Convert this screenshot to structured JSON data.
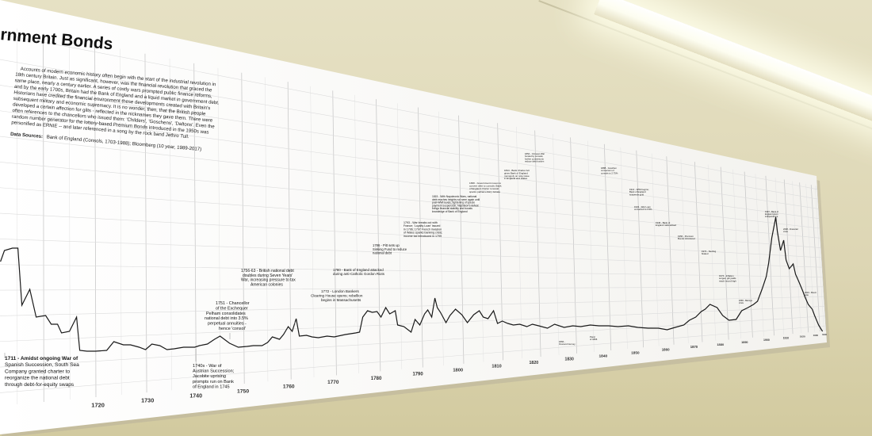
{
  "poster": {
    "title": "rnment Bonds",
    "intro_paragraph": [
      "Accounts of modern economic history often begin with the start of the industrial revolution in",
      "18th century Britain. Just as significant, however, was the financial revolution that graced the",
      "same place, nearly a century earlier. A series of costly wars prompted public finance reforms,",
      "and by the early 1700s, Britain had the Bank of England and a liquid market in government debt.",
      "Historians have credited the financial environment these developments created with Britain's",
      "subsequent military and economic supremacy. It is no wonder, then, that the British people",
      "developed a certain affection for gilts - reflected in the nicknames they gave them. There were",
      "often references to the chancellors who issued them: 'Childers', 'Goschens', 'Daltons'. Even the",
      "random number generator for the lottery-based Premium Bonds introduced in the 1950s was",
      "personified as ERNIE -- and later referenced in a song by the rock band Jethro Tull."
    ],
    "data_sources_label": "Data Sources:",
    "data_sources_text": "Bank of England (Consols, 1703-1988); Bloomberg (10 year, 1989-2017)",
    "annotations": {
      "a1711": [
        "1711 - Amidst ongoing War of",
        "Spanish Succession, South Sea",
        "Company granted charter to",
        "reorganize the national debt",
        "through debt-for-equity swaps"
      ],
      "a1740": [
        "1740s - War of",
        "Austrian Succession;",
        "Jacobite uprising",
        "prompts run on Bank",
        "of England in 1745"
      ],
      "a1751": [
        "1751 - Chancellor",
        "of the Exchequer",
        "Pelham consolidates",
        "national debt into 3.5%",
        "perpetual annuities -",
        "hence 'consol'"
      ],
      "a1756": [
        "1756-63 - British national debt",
        "doubles during Seven Years'",
        "War, increasing pressure to tax",
        "American colonies"
      ],
      "a1772": [
        "1772 - London Bankers",
        "Clearing House opens; rebellion",
        "begins in Massachusetts"
      ],
      "a1780": [
        "1780 - Bank of England attacked",
        "during anti-Catholic Gordon Riots"
      ],
      "a1786": [
        "1786 - Pitt sets up",
        "Sinking Fund to reduce",
        "national debt"
      ],
      "a1793": [
        "1793 - War breaks out with",
        "France; 'Loyalty Loan' issued",
        "in 1796; 1797 French invasion",
        "of Wales sparks banking crisis;",
        "income tax introduced in 1799"
      ],
      "a1815": [
        "1815 - With Napoleonic Wars, national",
        "debt reaches heights not seen again until",
        "post-WWI levels; tightening of specie",
        "payment suspension; Napoleon's defeat",
        "brings financial stability and boosts",
        "knowledge of Bank of England"
      ],
      "a1830": [
        "1830 - Government moves to",
        "convert debt to consols; Bank",
        "of England charter renewal",
        "sparks parliamentary debate"
      ],
      "a1844": [
        "1844 - Bank Charter Act",
        "gives Bank of England",
        "monopoly on note issue",
        "in England and Wales"
      ],
      "a1854": [
        "1854 - Crimean War",
        "funded by consols;",
        "further conversions",
        "reduce debt burden"
      ],
      "a1888": [
        "1888 - Goschen",
        "conversion of",
        "consols to 2.75%"
      ],
      "a1914": [
        "1914 - WWI begins;",
        "Bank of England",
        "suspends gold"
      ],
      "a1932": [
        "1932 - War Loan",
        "converted to 3.5%"
      ],
      "a1946": [
        "1946 - Bank of",
        "England nationalised"
      ],
      "a1956": [
        "1956 - Premium",
        "Bonds introduced"
      ],
      "a1972": [
        "1972 - Sterling",
        "floated"
      ],
      "a1974": [
        "1974 - Inflation",
        "surges; gilt yields",
        "reach record high"
      ],
      "a1997": [
        "1997 - Bank of",
        "England given",
        "independence"
      ],
      "a2008": [
        "2008 - Financial",
        "crisis"
      ],
      "a2016": [
        "2016 - Brexit",
        "vote"
      ],
      "a1890": [
        "1890 - Barings",
        "crisis"
      ],
      "a1866": [
        "1866 -",
        "Overend Gurney"
      ],
      "a1866b": [
        "Panic",
        "of 1866"
      ]
    },
    "x_axis_years": [
      "1720",
      "1730",
      "1740",
      "1750",
      "1760",
      "1770",
      "1780",
      "1790",
      "1800",
      "1810",
      "1820",
      "1830",
      "1840",
      "1850",
      "1860",
      "1870",
      "1880",
      "1890",
      "1900",
      "1910",
      "1920",
      "1930",
      "1940",
      "1950"
    ]
  }
}
